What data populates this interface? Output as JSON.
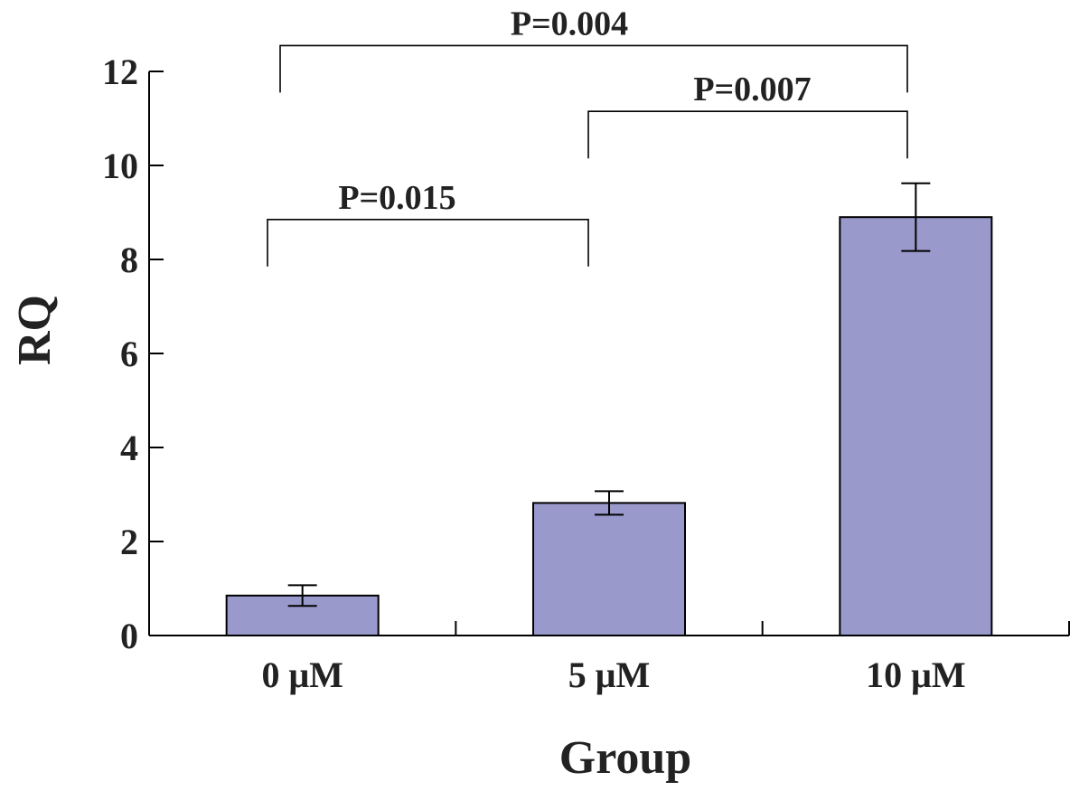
{
  "chart_data": {
    "type": "bar",
    "xlabel": "Group",
    "ylabel": "RQ",
    "ylim": [
      0,
      12
    ],
    "yticks": [
      0,
      2,
      4,
      6,
      8,
      10,
      12
    ],
    "categories": [
      "0 μM",
      "5 μM",
      "10 μM"
    ],
    "values": [
      0.85,
      2.82,
      8.9
    ],
    "errors": [
      0.22,
      0.25,
      0.72
    ],
    "bar_color": "#9999cc",
    "grid": false,
    "significance": [
      {
        "from": 0,
        "to": 1,
        "label": "P=0.015",
        "y": 8.85
      },
      {
        "from": 1,
        "to": 2,
        "label": "P=0.007",
        "y": 11.15
      },
      {
        "from": 0,
        "to": 2,
        "label": "P=0.004",
        "y": 12.55
      }
    ]
  }
}
